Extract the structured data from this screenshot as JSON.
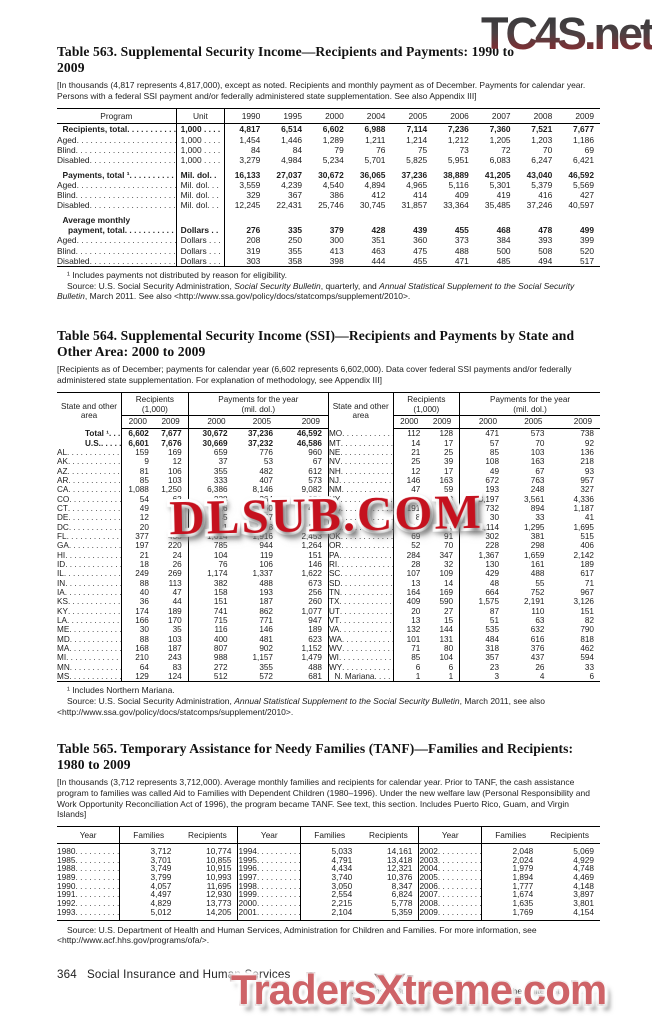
{
  "watermarks": {
    "top": "TC4S.net",
    "middle": "DLSUB.COM",
    "bottom": "TradersXtreme.com",
    "mid_color": "#c5111e",
    "bottom_color": "#ce6367"
  },
  "table563": {
    "title": "Table 563. Supplemental Security Income—Recipients and Payments: 1990 to 2009",
    "note": "[In thousands (4,817 represents 4,817,000), except as noted. Recipients and monthly payment as of December. Payments for calendar year. Persons with a federal SSI payment and/or federally administered state supplementation. See also Appendix III]",
    "col_program": "Program",
    "col_unit": "Unit",
    "years": [
      "1990",
      "1995",
      "2000",
      "2004",
      "2005",
      "2006",
      "2007",
      "2008",
      "2009"
    ],
    "rows": [
      {
        "label": "Recipients, total",
        "bold": true,
        "ind": 1,
        "unit": "1,000 . . . .",
        "values": [
          "4,817",
          "6,514",
          "6,602",
          "6,988",
          "7,114",
          "7,236",
          "7,360",
          "7,521",
          "7,677"
        ]
      },
      {
        "label": "Aged",
        "unit": "1,000 . . . .",
        "values": [
          "1,454",
          "1,446",
          "1,289",
          "1,211",
          "1,214",
          "1,212",
          "1,205",
          "1,203",
          "1,186"
        ]
      },
      {
        "label": "Blind",
        "unit": "1,000 . . . .",
        "values": [
          "84",
          "84",
          "79",
          "76",
          "75",
          "73",
          "72",
          "70",
          "69"
        ]
      },
      {
        "label": "Disabled",
        "unit": "1,000 . . . .",
        "values": [
          "3,279",
          "4,984",
          "5,234",
          "5,701",
          "5,825",
          "5,951",
          "6,083",
          "6,247",
          "6,421"
        ]
      },
      {
        "label": "Payments, total ¹",
        "bold": true,
        "ind": 1,
        "gap": true,
        "unit": "Mil. dol.  .",
        "values": [
          "16,133",
          "27,037",
          "30,672",
          "36,065",
          "37,236",
          "38,889",
          "41,205",
          "43,040",
          "46,592"
        ]
      },
      {
        "label": "Aged",
        "unit": "Mil. dol. . .",
        "values": [
          "3,559",
          "4,239",
          "4,540",
          "4,894",
          "4,965",
          "5,116",
          "5,301",
          "5,379",
          "5,569"
        ]
      },
      {
        "label": "Blind",
        "unit": "Mil. dol. . .",
        "values": [
          "329",
          "367",
          "386",
          "412",
          "414",
          "409",
          "419",
          "416",
          "427"
        ]
      },
      {
        "label": "Disabled",
        "unit": "Mil. dol. . .",
        "values": [
          "12,245",
          "22,431",
          "25,746",
          "30,745",
          "31,857",
          "33,364",
          "35,485",
          "37,246",
          "40,597"
        ]
      },
      {
        "label": "Average monthly",
        "bold": true,
        "ind": 1,
        "gap": true,
        "noleader": true,
        "unit": "",
        "values": null
      },
      {
        "label": "payment, total",
        "bold": true,
        "ind": 2,
        "unit": "Dollars . .",
        "values": [
          "276",
          "335",
          "379",
          "428",
          "439",
          "455",
          "468",
          "478",
          "499"
        ]
      },
      {
        "label": "Aged",
        "unit": "Dollars . . .",
        "values": [
          "208",
          "250",
          "300",
          "351",
          "360",
          "373",
          "384",
          "393",
          "399"
        ]
      },
      {
        "label": "Blind",
        "unit": "Dollars . . .",
        "values": [
          "319",
          "355",
          "413",
          "463",
          "475",
          "488",
          "500",
          "508",
          "520"
        ]
      },
      {
        "label": "Disabled",
        "unit": "Dollars . . .",
        "values": [
          "303",
          "358",
          "398",
          "444",
          "455",
          "471",
          "485",
          "494",
          "517"
        ]
      }
    ],
    "footnote": "¹ Includes payments not distributed by reason for eligibility.",
    "source_runs": [
      {
        "t": "Source: U.S. Social Security Administration, "
      },
      {
        "t": "Social Security Bulletin",
        "i": true
      },
      {
        "t": ", quarterly, and "
      },
      {
        "t": "Annual Statistical Supplement to the Social Security Bulletin",
        "i": true
      },
      {
        "t": ", March 2011. See also <http://www.ssa.gov/policy/docs/statcomps/supplement/2010>."
      }
    ]
  },
  "table564": {
    "title": "Table 564. Supplemental Security Income (SSI)—Recipients and Payments by State and Other Area: 2000 to 2009",
    "note": "[Recipients as of December; payments for calendar year (6,602 represents 6,602,000). Data cover federal SSI payments and/or federally administered state supplementation. For explanation of methodology, see Appendix III]",
    "header": {
      "state": "State and other area",
      "recipients": "Recipients",
      "recipients_unit": "(1,000)",
      "payments": "Payments for the year",
      "payments_unit": "(mil. dol.)",
      "rec_years": [
        "2000",
        "2009"
      ],
      "pay_years": [
        "2000",
        "2005",
        "2009"
      ]
    },
    "left_rows": [
      {
        "label": "Total ¹",
        "bold": true,
        "ind": 3,
        "values": [
          "6,602",
          "7,677",
          "30,672",
          "37,236",
          "46,592"
        ]
      },
      {
        "label": "U.S.",
        "bold": true,
        "ind": 3,
        "values": [
          "6,601",
          "7,676",
          "30,669",
          "37,232",
          "46,586"
        ]
      },
      {
        "label": "AL",
        "values": [
          "159",
          "169",
          "659",
          "776",
          "960"
        ]
      },
      {
        "label": "AK",
        "values": [
          "9",
          "12",
          "37",
          "53",
          "67"
        ]
      },
      {
        "label": "AZ",
        "values": [
          "81",
          "106",
          "355",
          "482",
          "612"
        ]
      },
      {
        "label": "AR",
        "values": [
          "85",
          "103",
          "333",
          "407",
          "573"
        ]
      },
      {
        "label": "CA",
        "values": [
          "1,088",
          "1,250",
          "6,386",
          "8,146",
          "9,082"
        ]
      },
      {
        "label": "CO",
        "values": [
          "54",
          "62",
          "228",
          "264",
          "350"
        ]
      },
      {
        "label": "CT",
        "values": [
          "49",
          "56",
          "316",
          "360",
          "425"
        ]
      },
      {
        "label": "DE",
        "values": [
          "12",
          "15",
          "45",
          "57",
          "75"
        ]
      },
      {
        "label": "DC",
        "values": [
          "20",
          "25",
          "81",
          "98",
          "127"
        ]
      },
      {
        "label": "FL",
        "values": [
          "377",
          "438",
          "1,614",
          "1,916",
          "2,453"
        ]
      },
      {
        "label": "GA",
        "values": [
          "197",
          "220",
          "785",
          "944",
          "1,264"
        ]
      },
      {
        "label": "HI",
        "values": [
          "21",
          "24",
          "104",
          "119",
          "151"
        ]
      },
      {
        "label": "ID",
        "values": [
          "18",
          "26",
          "76",
          "106",
          "146"
        ]
      },
      {
        "label": "IL",
        "values": [
          "249",
          "269",
          "1,174",
          "1,337",
          "1,622"
        ]
      },
      {
        "label": "IN",
        "values": [
          "88",
          "113",
          "382",
          "488",
          "673"
        ]
      },
      {
        "label": "IA",
        "values": [
          "40",
          "47",
          "158",
          "193",
          "256"
        ]
      },
      {
        "label": "KS",
        "values": [
          "36",
          "44",
          "151",
          "187",
          "260"
        ]
      },
      {
        "label": "KY",
        "values": [
          "174",
          "189",
          "741",
          "862",
          "1,077"
        ]
      },
      {
        "label": "LA",
        "values": [
          "166",
          "170",
          "715",
          "771",
          "947"
        ]
      },
      {
        "label": "ME",
        "values": [
          "30",
          "35",
          "116",
          "146",
          "189"
        ]
      },
      {
        "label": "MD",
        "values": [
          "88",
          "103",
          "400",
          "481",
          "623"
        ]
      },
      {
        "label": "MA",
        "values": [
          "168",
          "187",
          "807",
          "902",
          "1,152"
        ]
      },
      {
        "label": "MI",
        "values": [
          "210",
          "243",
          "988",
          "1,157",
          "1,479"
        ]
      },
      {
        "label": "MN",
        "values": [
          "64",
          "83",
          "272",
          "355",
          "488"
        ]
      },
      {
        "label": "MS",
        "values": [
          "129",
          "124",
          "512",
          "572",
          "681"
        ]
      }
    ],
    "right_rows": [
      {
        "label": "MO",
        "values": [
          "112",
          "128",
          "471",
          "573",
          "738"
        ]
      },
      {
        "label": "MT",
        "values": [
          "14",
          "17",
          "57",
          "70",
          "92"
        ]
      },
      {
        "label": "NE",
        "values": [
          "21",
          "25",
          "85",
          "103",
          "136"
        ]
      },
      {
        "label": "NV",
        "values": [
          "25",
          "39",
          "108",
          "163",
          "218"
        ]
      },
      {
        "label": "NH",
        "values": [
          "12",
          "17",
          "49",
          "67",
          "93"
        ]
      },
      {
        "label": "NJ",
        "values": [
          "146",
          "163",
          "672",
          "763",
          "957"
        ]
      },
      {
        "label": "NM",
        "values": [
          "47",
          "59",
          "193",
          "248",
          "327"
        ]
      },
      {
        "label": "NY",
        "values": [
          "617",
          "668",
          "3,197",
          "3,561",
          "4,336"
        ]
      },
      {
        "label": "NC",
        "values": [
          "191",
          "213",
          "732",
          "894",
          "1,187"
        ]
      },
      {
        "label": "ND",
        "values": [
          "8",
          "8",
          "30",
          "33",
          "41"
        ]
      },
      {
        "label": "OH",
        "values": [
          "249",
          "274",
          "1,114",
          "1,295",
          "1,695"
        ]
      },
      {
        "label": "OK",
        "values": [
          "69",
          "91",
          "302",
          "381",
          "515"
        ]
      },
      {
        "label": "OR",
        "values": [
          "52",
          "70",
          "228",
          "298",
          "406"
        ]
      },
      {
        "label": "PA",
        "values": [
          "284",
          "347",
          "1,367",
          "1,659",
          "2,142"
        ]
      },
      {
        "label": "RI",
        "values": [
          "28",
          "32",
          "130",
          "161",
          "189"
        ]
      },
      {
        "label": "SC",
        "values": [
          "107",
          "109",
          "429",
          "488",
          "617"
        ]
      },
      {
        "label": "SD",
        "values": [
          "13",
          "14",
          "48",
          "55",
          "71"
        ]
      },
      {
        "label": "TN",
        "values": [
          "164",
          "169",
          "664",
          "752",
          "967"
        ]
      },
      {
        "label": "TX",
        "values": [
          "409",
          "590",
          "1,575",
          "2,191",
          "3,126"
        ]
      },
      {
        "label": "UT",
        "values": [
          "20",
          "27",
          "87",
          "110",
          "151"
        ]
      },
      {
        "label": "VT",
        "values": [
          "13",
          "15",
          "51",
          "63",
          "82"
        ]
      },
      {
        "label": "VA",
        "values": [
          "132",
          "144",
          "535",
          "632",
          "790"
        ]
      },
      {
        "label": "WA",
        "values": [
          "101",
          "131",
          "484",
          "616",
          "818"
        ]
      },
      {
        "label": "WV",
        "values": [
          "71",
          "80",
          "318",
          "376",
          "462"
        ]
      },
      {
        "label": "WI",
        "values": [
          "85",
          "104",
          "357",
          "437",
          "594"
        ]
      },
      {
        "label": "WY",
        "values": [
          "6",
          "6",
          "23",
          "26",
          "33"
        ]
      },
      {
        "label": "N. Mariana",
        "ind": 1,
        "values": [
          "1",
          "1",
          "3",
          "4",
          "6"
        ]
      }
    ],
    "footnote": "¹ Includes Northern Mariana.",
    "source_runs": [
      {
        "t": "Source: U.S. Social Security Administration, "
      },
      {
        "t": "Annual Statistical Supplement to the Social Security Bulletin",
        "i": true
      },
      {
        "t": ", March 2011, see also <http://www.ssa.gov/policy/docs/statcomps/supplement/2010>."
      }
    ]
  },
  "table565": {
    "title": "Table 565. Temporary Assistance for Needy Families (TANF)—Families and Recipients: 1980 to 2009",
    "note": "[In thousands (3,712 represents 3,712,000). Average monthly families and recipients for calendar year. Prior to TANF, the cash assistance program to families was called Aid to Families with Dependent Children (1980–1996). Under the new welfare law (Personal Responsibility and Work Opportunity Reconciliation Act of 1996), the program became TANF. See text, this section. Includes Puerto Rico, Guam, and Virgin Islands]",
    "col_year": "Year",
    "col_families": "Families",
    "col_recipients": "Recipients",
    "groups": [
      {
        "rows": [
          [
            "1980",
            "3,712",
            "10,774"
          ],
          [
            "1985",
            "3,701",
            "10,855"
          ],
          [
            "1988",
            "3,749",
            "10,915"
          ],
          [
            "1989",
            "3,799",
            "10,993"
          ],
          [
            "1990",
            "4,057",
            "11,695"
          ],
          [
            "1991",
            "4,497",
            "12,930"
          ],
          [
            "1992",
            "4,829",
            "13,773"
          ],
          [
            "1993",
            "5,012",
            "14,205"
          ]
        ]
      },
      {
        "rows": [
          [
            "1994",
            "5,033",
            "14,161"
          ],
          [
            "1995",
            "4,791",
            "13,418"
          ],
          [
            "1996",
            "4,434",
            "12,321"
          ],
          [
            "1997",
            "3,740",
            "10,376"
          ],
          [
            "1998",
            "3,050",
            "8,347"
          ],
          [
            "1999",
            "2,554",
            "6,824"
          ],
          [
            "2000",
            "2,215",
            "5,778"
          ],
          [
            "2001",
            "2,104",
            "5,359"
          ]
        ]
      },
      {
        "rows": [
          [
            "2002",
            "2,048",
            "5,069"
          ],
          [
            "2003",
            "2,024",
            "4,929"
          ],
          [
            "2004",
            "1,979",
            "4,748"
          ],
          [
            "2005",
            "1,894",
            "4,469"
          ],
          [
            "2006",
            "1,777",
            "4,148"
          ],
          [
            "2007",
            "1,674",
            "3,897"
          ],
          [
            "2008",
            "1,635",
            "3,801"
          ],
          [
            "2009",
            "1,769",
            "4,154"
          ]
        ]
      }
    ],
    "source_runs": [
      {
        "t": "Source: U.S. Department of Health and Human Services, Administration for Children and Families. For more information, see <http://www.acf.hhs.gov/programs/ofa/>."
      }
    ]
  },
  "footer": {
    "page_number": "364",
    "section_title": "Social Insurance and Human Services",
    "credit": "U.S. Census Bureau, Statistical Abstract of the United States: 2012"
  }
}
